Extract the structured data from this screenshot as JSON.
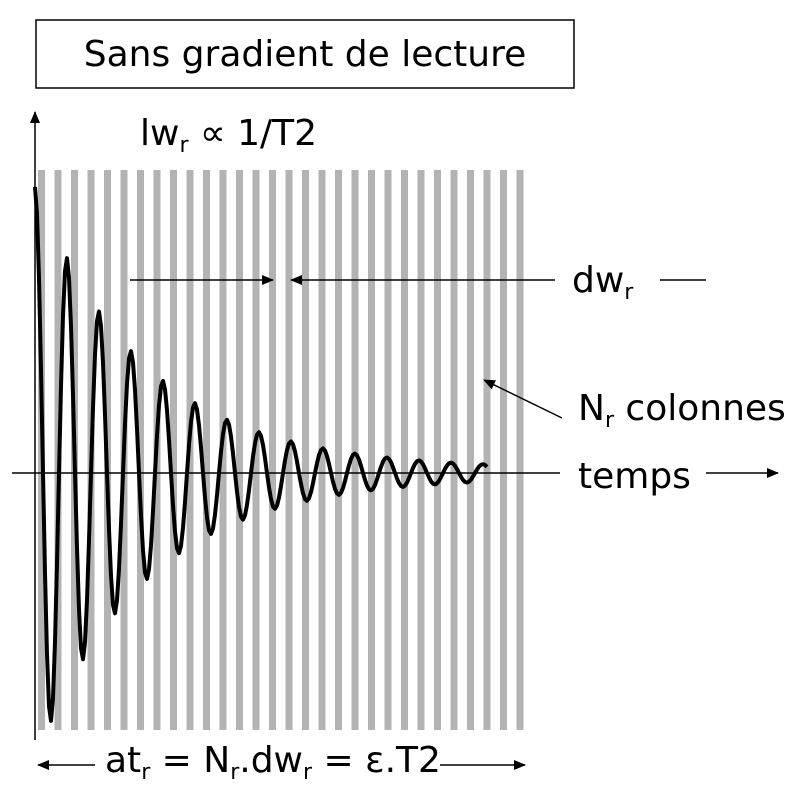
{
  "title": "Sans gradient de lecture",
  "linewidth": [
    "lw",
    "r",
    " ∝ 1/T2"
  ],
  "spacing": [
    "dw",
    "r"
  ],
  "columns": [
    "N",
    "r",
    " colonnes"
  ],
  "time": "temps",
  "equation": [
    "at",
    "r",
    " = N",
    "r",
    ".dw",
    "r",
    " = ε.T2"
  ]
}
